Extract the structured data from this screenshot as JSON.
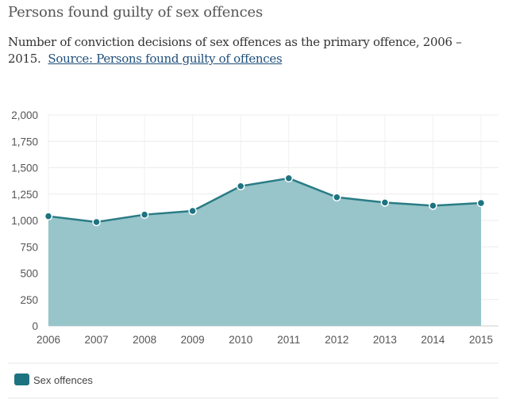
{
  "header": {
    "title": "Persons found guilty of sex offences",
    "subtitle": "Number of conviction decisions of sex offences as the primary offence, 2006 – 2015.",
    "source_link": "Source: Persons found guilty of offences"
  },
  "colors": {
    "area_fill": "#97c5ca",
    "line": "#2a7c85",
    "marker": "#1d7480",
    "legend_swatch": "#1d7480"
  },
  "chart_data": {
    "type": "area",
    "title": "Persons found guilty of sex offences",
    "xlabel": "",
    "ylabel": "",
    "x": [
      "2006",
      "2007",
      "2008",
      "2009",
      "2010",
      "2011",
      "2012",
      "2013",
      "2014",
      "2015"
    ],
    "series": [
      {
        "name": "Sex offences",
        "values": [
          1040,
          985,
          1055,
          1090,
          1325,
          1400,
          1220,
          1170,
          1140,
          1165
        ]
      }
    ],
    "yticks": [
      0,
      250,
      500,
      750,
      1000,
      1250,
      1500,
      1750,
      2000
    ],
    "ytick_labels": [
      "0",
      "250",
      "500",
      "750",
      "1,000",
      "1,250",
      "1,500",
      "1,750",
      "2,000"
    ],
    "ylim": [
      0,
      2000
    ],
    "grid": true,
    "legend": "bottom-left"
  }
}
